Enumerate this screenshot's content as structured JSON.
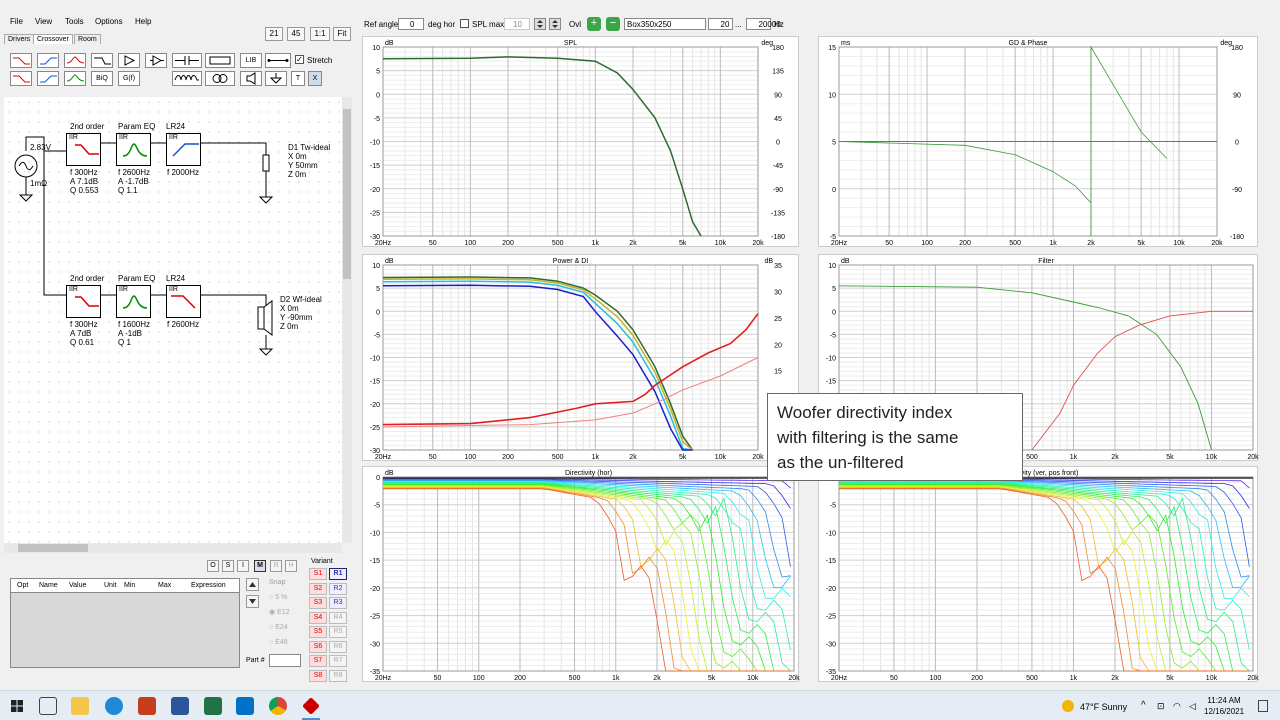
{
  "menu": [
    "File",
    "View",
    "Tools",
    "Options",
    "Help"
  ],
  "tabs": [
    "Drivers",
    "Crossover",
    "Room"
  ],
  "scale_buttons": [
    "21",
    "45",
    "1:1",
    "Fit"
  ],
  "toolbar": {
    "stretch_label": "Stretch",
    "lib": "LIB",
    "biq": "BiQ",
    "gf": "G(f)",
    "t": "T",
    "x": "X"
  },
  "source": {
    "voltage": "2.83V",
    "resistance": "1mΩ"
  },
  "tweeter_chain": {
    "blocks": [
      {
        "header": "2nd order",
        "type": "IIR",
        "params": [
          "f  300Hz",
          "A  7.1dB",
          "Q  0.553"
        ]
      },
      {
        "header": "Param EQ",
        "type": "IIR",
        "params": [
          "f  2600Hz",
          "A  -1.7dB",
          "Q  1.1"
        ]
      },
      {
        "header": "LR24",
        "type": "IIR",
        "params": [
          "f  2000Hz"
        ]
      }
    ],
    "driver": [
      "D1 Tw-ideal",
      "X 0m",
      "Y 50mm",
      "Z 0m"
    ]
  },
  "woofer_chain": {
    "blocks": [
      {
        "header": "2nd order",
        "type": "IIR",
        "params": [
          "f  300Hz",
          "A  7dB",
          "Q  0.61"
        ]
      },
      {
        "header": "Param EQ",
        "type": "IIR",
        "params": [
          "f  1600Hz",
          "A  -1dB",
          "Q  1"
        ]
      },
      {
        "header": "LR24",
        "type": "IIR",
        "params": [
          "f  2600Hz"
        ]
      }
    ],
    "driver": [
      "D2 Wf-ideal",
      "X 0m",
      "Y -90mm",
      "Z 0m"
    ]
  },
  "view_buttons": [
    "O",
    "S",
    "I",
    "M",
    "R",
    "H"
  ],
  "variant": {
    "label": "Variant",
    "s": [
      "S1",
      "S2",
      "S3",
      "S4",
      "S5",
      "S6",
      "S7",
      "S8"
    ],
    "r": [
      "R1",
      "R2",
      "R3",
      "R4",
      "R5",
      "R6",
      "R7",
      "R8"
    ]
  },
  "param_table": {
    "headers": [
      "Opt",
      "Name",
      "Value",
      "Unit",
      "Min",
      "Max",
      "Expression"
    ]
  },
  "snap": {
    "label": "Snap",
    "options": [
      "5 %",
      "E12",
      "E24",
      "E48"
    ]
  },
  "part_label": "Part #",
  "topbar": {
    "ref_angle_label": "Ref angle",
    "ref_angle": "0",
    "deg_hor": "deg hor",
    "spl_max_label": "SPL max",
    "spl_max": "10",
    "ovl": "Ovl",
    "box": "Box350x250",
    "f_low": "20",
    "f_sep": "...",
    "f_high": "20000",
    "hz": "Hz"
  },
  "plots": [
    {
      "title": "SPL",
      "left_unit": "dB",
      "right_unit": "deg",
      "yticks": [
        "10",
        "5",
        "0",
        "-5",
        "-10",
        "-15",
        "-20",
        "-25",
        "-30"
      ],
      "ryticks": [
        "180",
        "135",
        "90",
        "45",
        "0",
        "-45",
        "-90",
        "-135",
        "-180"
      ]
    },
    {
      "title": "GD & Phase",
      "left_unit": "ms",
      "right_unit": "deg",
      "yticks": [
        "15",
        "10",
        "5",
        "0",
        "-5"
      ],
      "ryticks": [
        "180",
        "90",
        "0",
        "-90",
        "-180"
      ]
    },
    {
      "title": "Power & DI",
      "left_unit": "dB",
      "right_unit": "dB",
      "yticks": [
        "10",
        "5",
        "0",
        "-5",
        "-10",
        "-15",
        "-20",
        "-25",
        "-30"
      ],
      "ryticks": [
        "35",
        "30",
        "25",
        "20",
        "15",
        "10",
        "5",
        "0"
      ]
    },
    {
      "title": "Filter",
      "left_unit": "dB",
      "right_unit": "",
      "yticks": [
        "10",
        "5",
        "0",
        "-5",
        "-10",
        "-15",
        "-20",
        "-25",
        "-30"
      ],
      "ryticks": []
    },
    {
      "title": "Directivity (hor)",
      "left_unit": "dB",
      "right_unit": "",
      "yticks": [
        "0",
        "-5",
        "-10",
        "-15",
        "-20",
        "-25",
        "-30",
        "-35"
      ],
      "ryticks": []
    },
    {
      "title": "ctivity (ver, pos front)",
      "left_unit": "dB",
      "right_unit": "",
      "yticks": [
        "0",
        "-5",
        "-10",
        "-15",
        "-20",
        "-25",
        "-30",
        "-35"
      ],
      "ryticks": []
    }
  ],
  "xticks": [
    "20Hz",
    "50",
    "100",
    "200",
    "500",
    "1k",
    "2k",
    "5k",
    "10k",
    "20k"
  ],
  "annotation": [
    "Woofer  directivity index",
    "with filtering is the same",
    "as the un-filtered"
  ],
  "taskbar": {
    "weather": "47°F  Sunny",
    "time": "11:24 AM",
    "date": "12/16/2021"
  }
}
